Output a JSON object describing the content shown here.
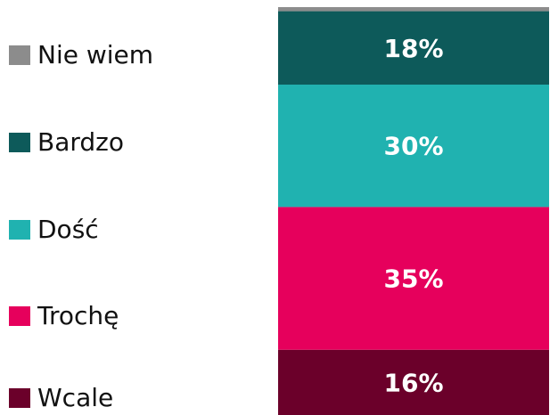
{
  "chart_data": {
    "type": "bar",
    "stacked": true,
    "ylim": [
      0,
      100
    ],
    "series": [
      {
        "name": "Wcale",
        "color": "#6b002a",
        "values": [
          16
        ],
        "value_labels": [
          "16%"
        ]
      },
      {
        "name": "Trochę",
        "color": "#e6005c",
        "values": [
          35
        ],
        "value_labels": [
          "35%"
        ]
      },
      {
        "name": "Dość",
        "color": "#20b2b0",
        "values": [
          30
        ],
        "value_labels": [
          "30%"
        ]
      },
      {
        "name": "Bardzo",
        "color": "#0d5a5a",
        "values": [
          18
        ],
        "value_labels": [
          "18%"
        ]
      },
      {
        "name": "Nie wiem",
        "color": "#8c8c8c",
        "values": [
          1
        ],
        "value_labels": [
          null
        ]
      }
    ]
  }
}
